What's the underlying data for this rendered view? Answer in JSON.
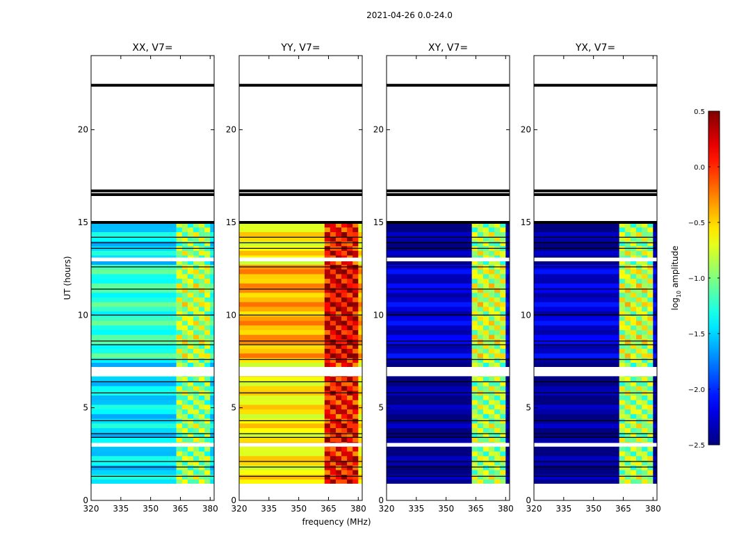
{
  "chart_data": {
    "type": "heatmap",
    "suptitle": "2021-04-26 0.0-24.0",
    "xlabel": "frequency (MHz)",
    "ylabel": "UT (hours)",
    "xlim": [
      320,
      382
    ],
    "ylim": [
      0,
      24
    ],
    "xticks": [
      320,
      335,
      350,
      365,
      380
    ],
    "yticks": [
      0,
      5,
      10,
      15,
      20
    ],
    "data_range_hours": [
      0.9,
      15.0
    ],
    "rfi_band_mhz": [
      363,
      380
    ],
    "panels": [
      {
        "title": "XX, V7=",
        "base_log_amp": -1.45,
        "band_log_amp": -0.95
      },
      {
        "title": "YY, V7=",
        "base_log_amp": -0.6,
        "band_log_amp": 0.1
      },
      {
        "title": "XY, V7=",
        "base_log_amp": -2.45,
        "band_log_amp": -0.9
      },
      {
        "title": "YX, V7=",
        "base_log_amp": -2.45,
        "band_log_amp": -0.9
      }
    ],
    "colorbar": {
      "label": "log",
      "label_sub": "10",
      "label_rest": " amplitude",
      "colormap": "jet",
      "range": [
        -2.5,
        0.5
      ],
      "ticks": [
        "0.5",
        "0.0",
        "−0.5",
        "−1.0",
        "−1.5",
        "−2.0",
        "−2.5"
      ],
      "tick_values": [
        0.5,
        0.0,
        -0.5,
        -1.0,
        -1.5,
        -2.0,
        -2.5
      ]
    },
    "black_lines_hours": [
      22.4,
      16.7,
      16.5,
      15.0,
      14.2,
      13.9,
      13.6,
      12.6,
      11.4,
      10.0,
      8.6,
      8.4,
      7.6,
      6.4,
      5.8,
      4.3,
      3.6,
      3.4,
      2.1,
      1.8,
      1.3
    ],
    "white_gap_hours": [
      [
        12.9,
        13.1
      ],
      [
        6.7,
        7.2
      ],
      [
        2.9,
        3.1
      ],
      [
        0,
        0.9
      ],
      [
        15.0,
        24.0
      ]
    ]
  }
}
